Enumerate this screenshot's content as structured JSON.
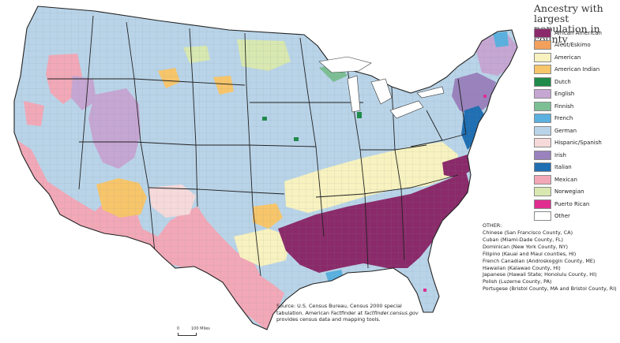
{
  "legend": {
    "title": "Ancestry with largest population in county",
    "items": [
      {
        "label": "African American",
        "color": "#8b2a6a"
      },
      {
        "label": "Aleut/Eskimo",
        "color": "#f2a05c"
      },
      {
        "label": "American",
        "color": "#f7f2bf"
      },
      {
        "label": "American Indian",
        "color": "#f7c56a"
      },
      {
        "label": "Dutch",
        "color": "#1f8a49"
      },
      {
        "label": "English",
        "color": "#c6a6d3"
      },
      {
        "label": "Finnish",
        "color": "#7cbf95"
      },
      {
        "label": "French",
        "color": "#5ab0df"
      },
      {
        "label": "German",
        "color": "#b9d4e8"
      },
      {
        "label": "Hispanic/Spanish",
        "color": "#f6dada"
      },
      {
        "label": "Irish",
        "color": "#9a82bd"
      },
      {
        "label": "Italian",
        "color": "#1f6fb2"
      },
      {
        "label": "Mexican",
        "color": "#f2a8b7"
      },
      {
        "label": "Norwegian",
        "color": "#d8e8b0"
      },
      {
        "label": "Puerto Rican",
        "color": "#e02d8f"
      },
      {
        "label": "Other",
        "color": "#ffffff"
      }
    ]
  },
  "other": {
    "title": "OTHER:",
    "items": [
      "Chinese (San Francisco County, CA)",
      "Cuban (Miami-Dade County, FL)",
      "Dominican (New York County, NY)",
      "Filipino (Kauai and Maui counties, HI)",
      "French Canadian (Androskoggin County, ME)",
      "Hawaiian (Kalawao County, HI)",
      "Japanese (Hawaii State; Honolulu County, HI)",
      "Polish (Luzerne County, PA)",
      "Portugese (Bristol County, MA and Bristol County, RI)"
    ]
  },
  "source": {
    "lead": "Source: U.S. Census Bureau, Census 2000 special tabulation. American Factfinder at",
    "site": "factfinder.census.gov",
    "tail": "provides census data and mapping tools."
  },
  "scale": {
    "zero": "0",
    "max": "100 Miles"
  },
  "map": {
    "region_colors": {
      "german": "#b9d4e8",
      "mexican": "#f2a8b7",
      "african_american": "#8b2a6a",
      "american": "#f7f2bf",
      "english": "#c6a6d3",
      "american_indian": "#f7c56a",
      "hispanic": "#f6dada",
      "norwegian": "#d8e8b0",
      "irish": "#9a82bd",
      "italian": "#1f6fb2",
      "french": "#5ab0df",
      "finnish": "#7cbf95",
      "dutch": "#1f8a49",
      "puerto_rican": "#e02d8f"
    }
  }
}
